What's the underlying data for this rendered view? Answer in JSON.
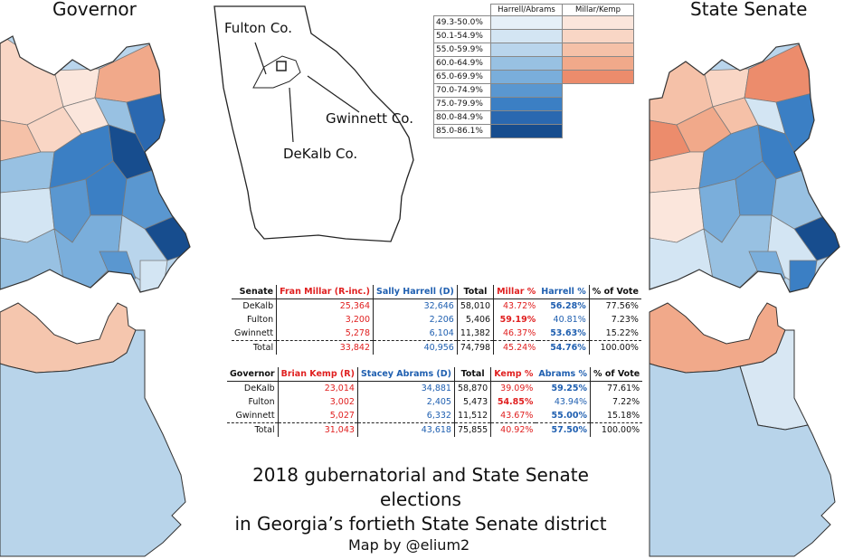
{
  "headings": {
    "governor": "Governor",
    "senate": "State Senate"
  },
  "inset_labels": {
    "fulton": "Fulton Co.",
    "gwinnett": "Gwinnett Co.",
    "dekalb": "DeKalb Co."
  },
  "legend": {
    "col_harrell": "Harrell/Abrams",
    "col_millar": "Millar/Kemp",
    "rows": [
      {
        "range": "49.3-50.0%",
        "blue": "#e6f0f8",
        "red": "#fbe6dc"
      },
      {
        "range": "50.1-54.9%",
        "blue": "#d3e5f3",
        "red": "#f9d6c5"
      },
      {
        "range": "55.0-59.9%",
        "blue": "#b9d5ec",
        "red": "#f5c1a8"
      },
      {
        "range": "60.0-64.9%",
        "blue": "#98c1e2",
        "red": "#f1a98a"
      },
      {
        "range": "65.0-69.9%",
        "blue": "#7aaedb",
        "red": "#ec8c6c"
      },
      {
        "range": "70.0-74.9%",
        "blue": "#5a97d0",
        "red": ""
      },
      {
        "range": "75.0-79.9%",
        "blue": "#3b7fc4",
        "red": ""
      },
      {
        "range": "80.0-84.9%",
        "blue": "#2a68b0",
        "red": ""
      },
      {
        "range": "85.0-86.1%",
        "blue": "#174d8e",
        "red": ""
      }
    ]
  },
  "senate_table": {
    "headers": [
      "Senate",
      "Fran Millar (R-inc.)",
      "Sally Harrell (D)",
      "Total",
      "Millar %",
      "Harrell %",
      "% of Vote"
    ],
    "rows": [
      [
        "DeKalb",
        "25,364",
        "32,646",
        "58,010",
        "43.72%",
        "56.28%",
        "77.56%"
      ],
      [
        "Fulton",
        "3,200",
        "2,206",
        "5,406",
        "59.19%",
        "40.81%",
        "7.23%"
      ],
      [
        "Gwinnett",
        "5,278",
        "6,104",
        "11,382",
        "46.37%",
        "53.63%",
        "15.22%"
      ]
    ],
    "total": [
      "Total",
      "33,842",
      "40,956",
      "74,798",
      "45.24%",
      "54.76%",
      "100.00%"
    ]
  },
  "governor_table": {
    "headers": [
      "Governor",
      "Brian Kemp (R)",
      "Stacey Abrams (D)",
      "Total",
      "Kemp %",
      "Abrams %",
      "% of Vote"
    ],
    "rows": [
      [
        "DeKalb",
        "23,014",
        "34,881",
        "58,870",
        "39.09%",
        "59.25%",
        "77.61%"
      ],
      [
        "Fulton",
        "3,002",
        "2,405",
        "5,473",
        "54.85%",
        "43.94%",
        "7.22%"
      ],
      [
        "Gwinnett",
        "5,027",
        "6,332",
        "11,512",
        "43.67%",
        "55.00%",
        "15.18%"
      ]
    ],
    "total": [
      "Total",
      "31,043",
      "43,618",
      "75,855",
      "40.92%",
      "57.50%",
      "100.00%"
    ]
  },
  "title": {
    "line1": "2018 gubernatorial and State Senate elections",
    "line2": "in Georgia’s fortieth State Senate district"
  },
  "credit": "Map by @elium2",
  "colors": {
    "county_north_red": "#f5c6ae",
    "county_rest_blue": "#b8d4ea",
    "senate_rest_blue": "#b8d4ea",
    "senate_fulton_light": "#d8e7f3"
  }
}
